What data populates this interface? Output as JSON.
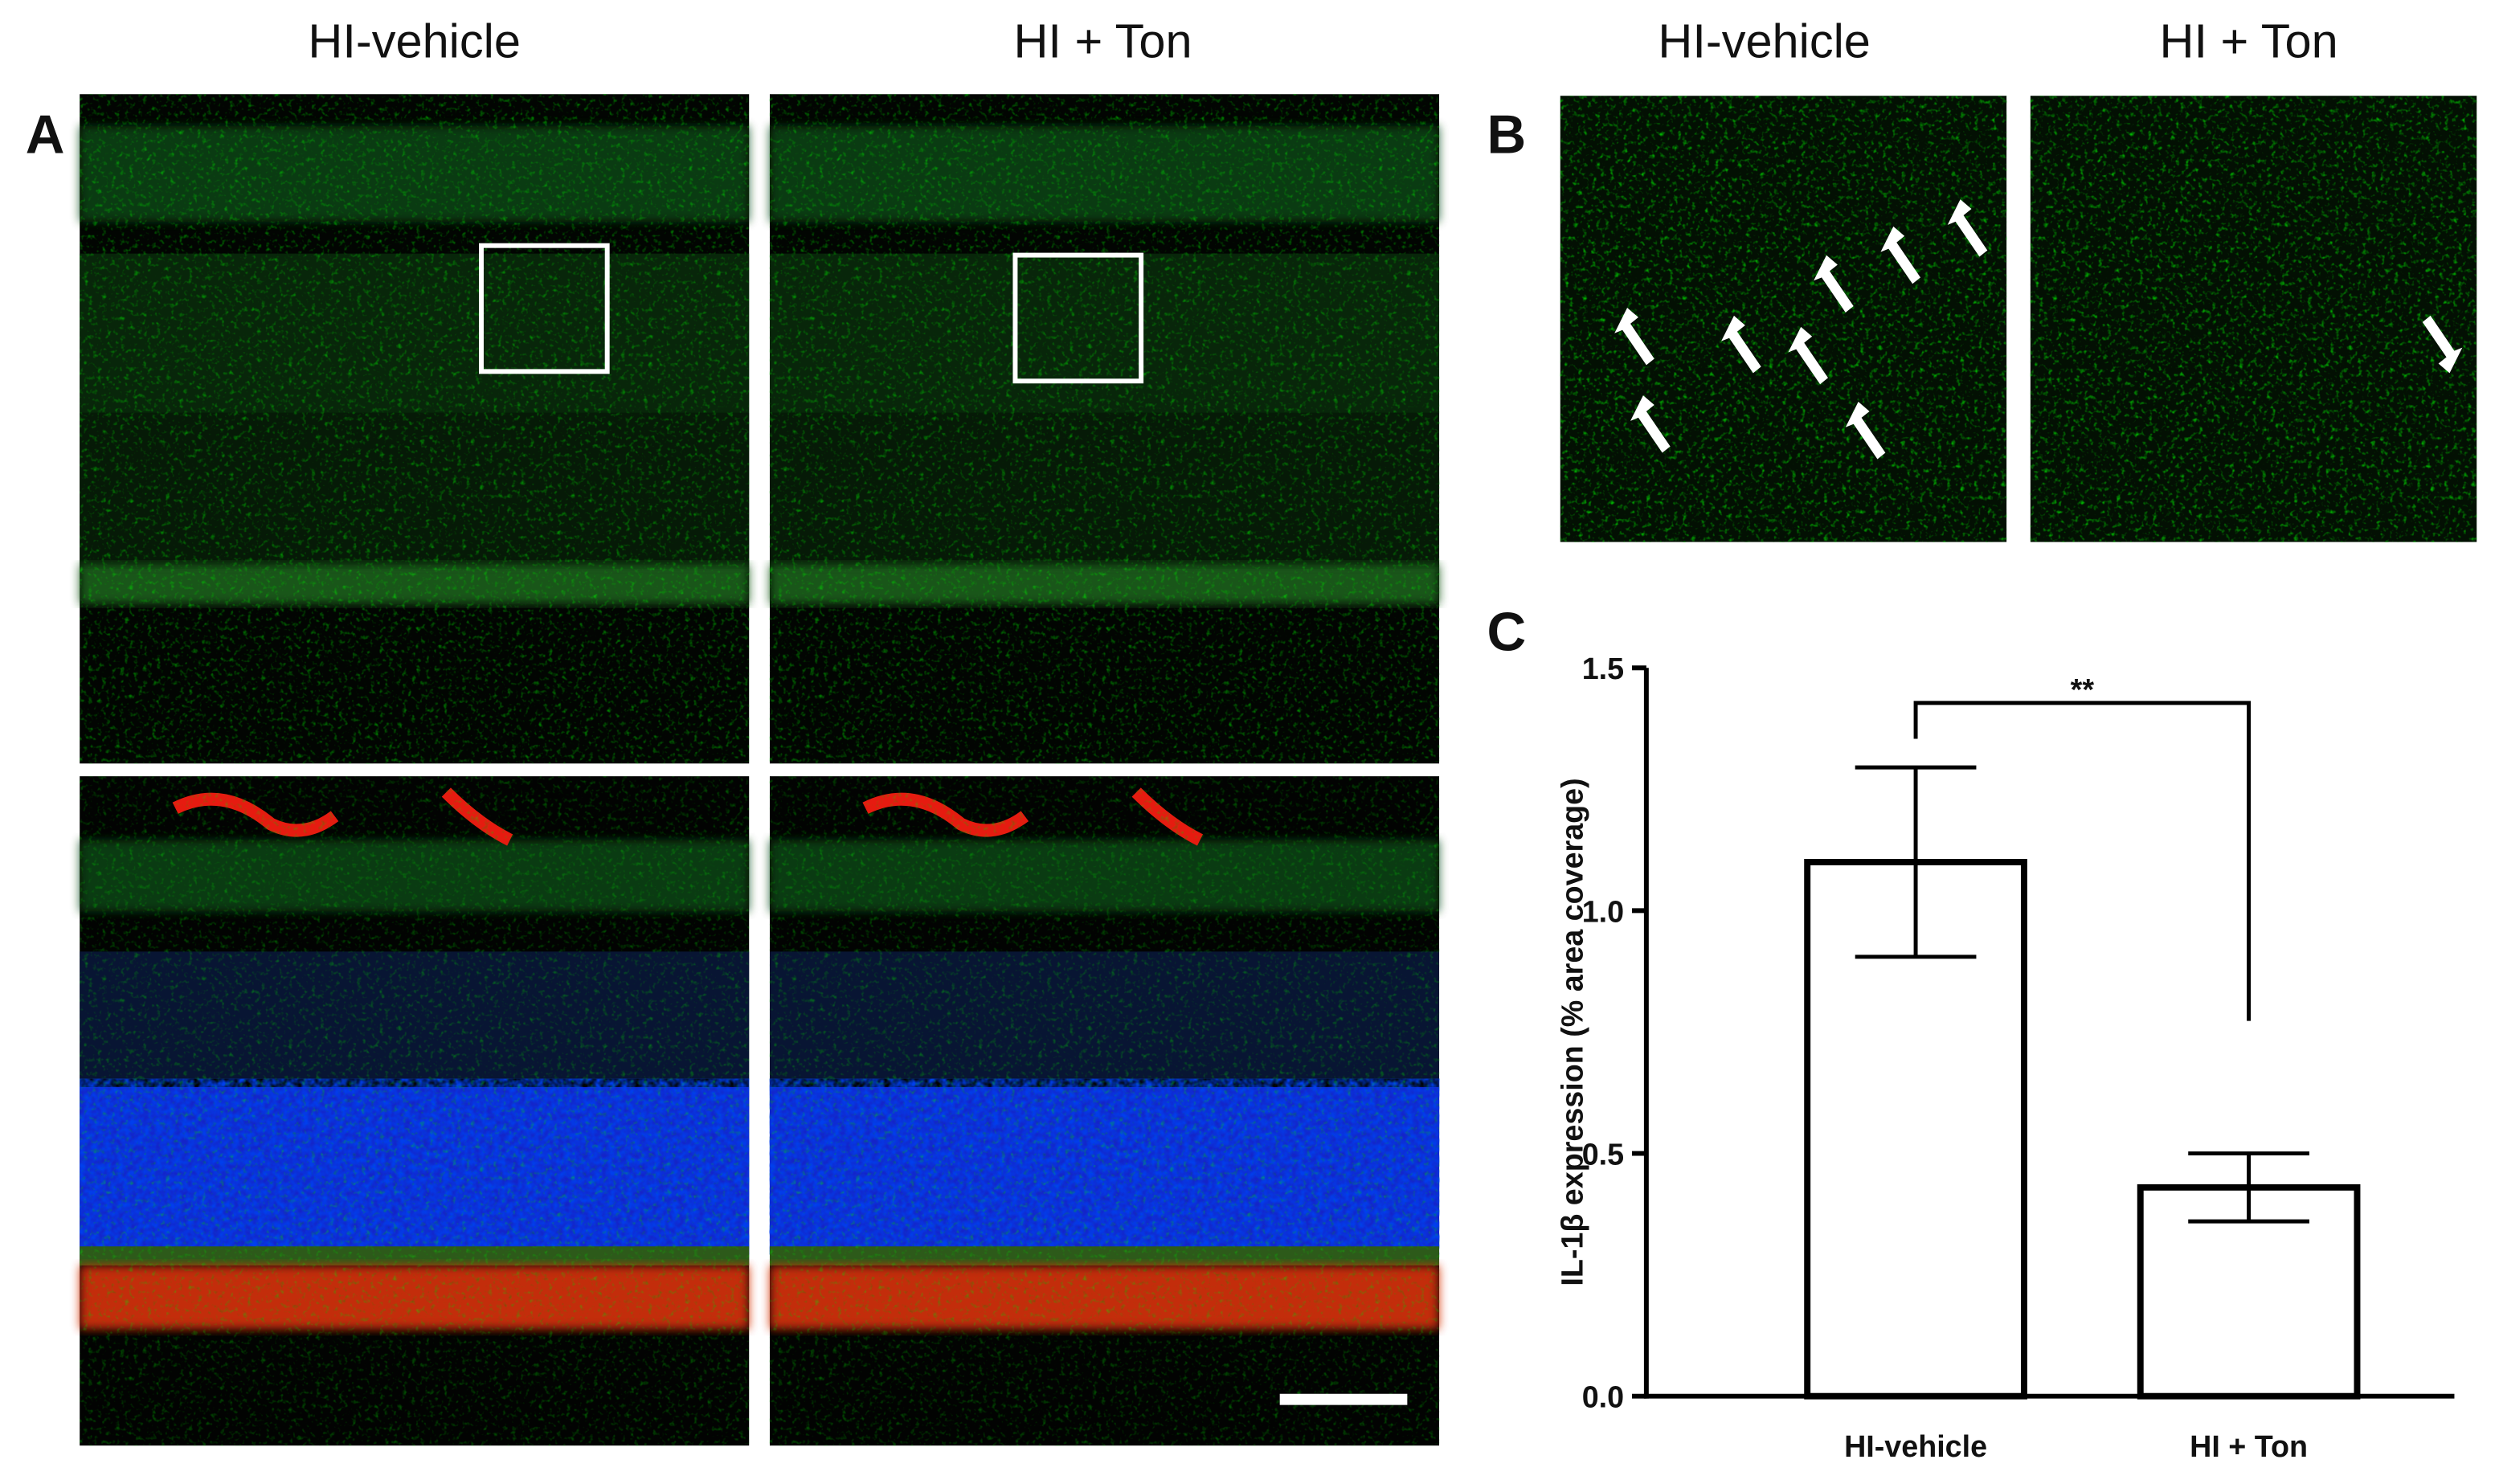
{
  "panel_a": {
    "label": "A",
    "columns": [
      "HI-vehicle",
      "HI + Ton"
    ]
  },
  "panel_b": {
    "label": "B",
    "columns": [
      "HI-vehicle",
      "HI + Ton"
    ]
  },
  "panel_c": {
    "label": "C"
  },
  "chart_data": {
    "type": "bar",
    "ylabel": "IL-1β expression (% area coverage)",
    "categories": [
      "HI-vehicle",
      "HI + Ton"
    ],
    "values": [
      1.1,
      0.43
    ],
    "errors": [
      0.195,
      0.07
    ],
    "color": "#ffffff",
    "edge_color": "#000000",
    "ylim": [
      0,
      1.5
    ],
    "yticks": [
      {
        "value": 0,
        "label": "0.0"
      },
      {
        "value": 0.5,
        "label": "0.5"
      },
      {
        "value": 1,
        "label": "1.0"
      },
      {
        "value": 1.5,
        "label": "1.5"
      }
    ],
    "annotation": "**"
  }
}
